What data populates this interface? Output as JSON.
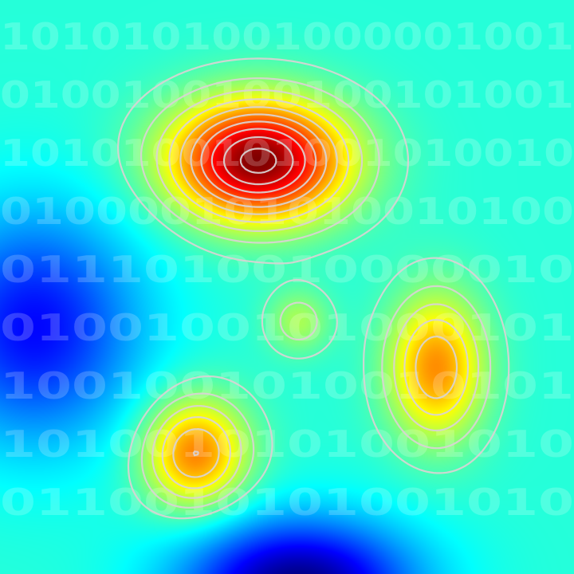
{
  "chart_data": {
    "type": "heatmap",
    "title": "",
    "xlabel": "",
    "ylabel": "",
    "xlim": [
      0,
      1
    ],
    "ylim": [
      0,
      1
    ],
    "grid": false,
    "colormap": "jet",
    "value_range": [
      -0.7,
      1.0
    ],
    "colormap_stops": [
      "#00007f",
      "#0000ff",
      "#007fff",
      "#00ffff",
      "#7fff7f",
      "#ffff00",
      "#ff7f00",
      "#ff0000",
      "#7f0000"
    ],
    "contour_color": "#d9d4d4",
    "field_components": [
      {
        "name": "primary-peak",
        "cx": 0.45,
        "cy": 0.72,
        "sx": 0.11,
        "sy": 0.075,
        "amp": 1.0
      },
      {
        "name": "right-peak",
        "cx": 0.76,
        "cy": 0.36,
        "sx": 0.06,
        "sy": 0.09,
        "amp": 0.55
      },
      {
        "name": "lower-left-peak",
        "cx": 0.34,
        "cy": 0.21,
        "sx": 0.065,
        "sy": 0.07,
        "amp": 0.58
      },
      {
        "name": "center-bump",
        "cx": 0.52,
        "cy": 0.44,
        "sx": 0.04,
        "sy": 0.04,
        "amp": 0.22
      },
      {
        "name": "left-trough",
        "cx": 0.06,
        "cy": 0.43,
        "sx": 0.13,
        "sy": 0.14,
        "amp": -0.48
      },
      {
        "name": "bottom-trough",
        "cx": 0.52,
        "cy": -0.02,
        "sx": 0.14,
        "sy": 0.08,
        "amp": -0.7
      }
    ],
    "contour_levels": [
      0.06,
      0.16,
      0.26,
      0.36,
      0.46,
      0.56,
      0.66,
      0.76,
      0.86,
      0.96
    ],
    "binary_rows": [
      "1010101001000001001",
      "0100100100100101001",
      "1010100101001010010",
      "010000101010010100",
      "0111010010000010",
      "0100100101000101",
      "1001001010010101",
      "1010010101001010",
      "0110010101001010"
    ]
  }
}
